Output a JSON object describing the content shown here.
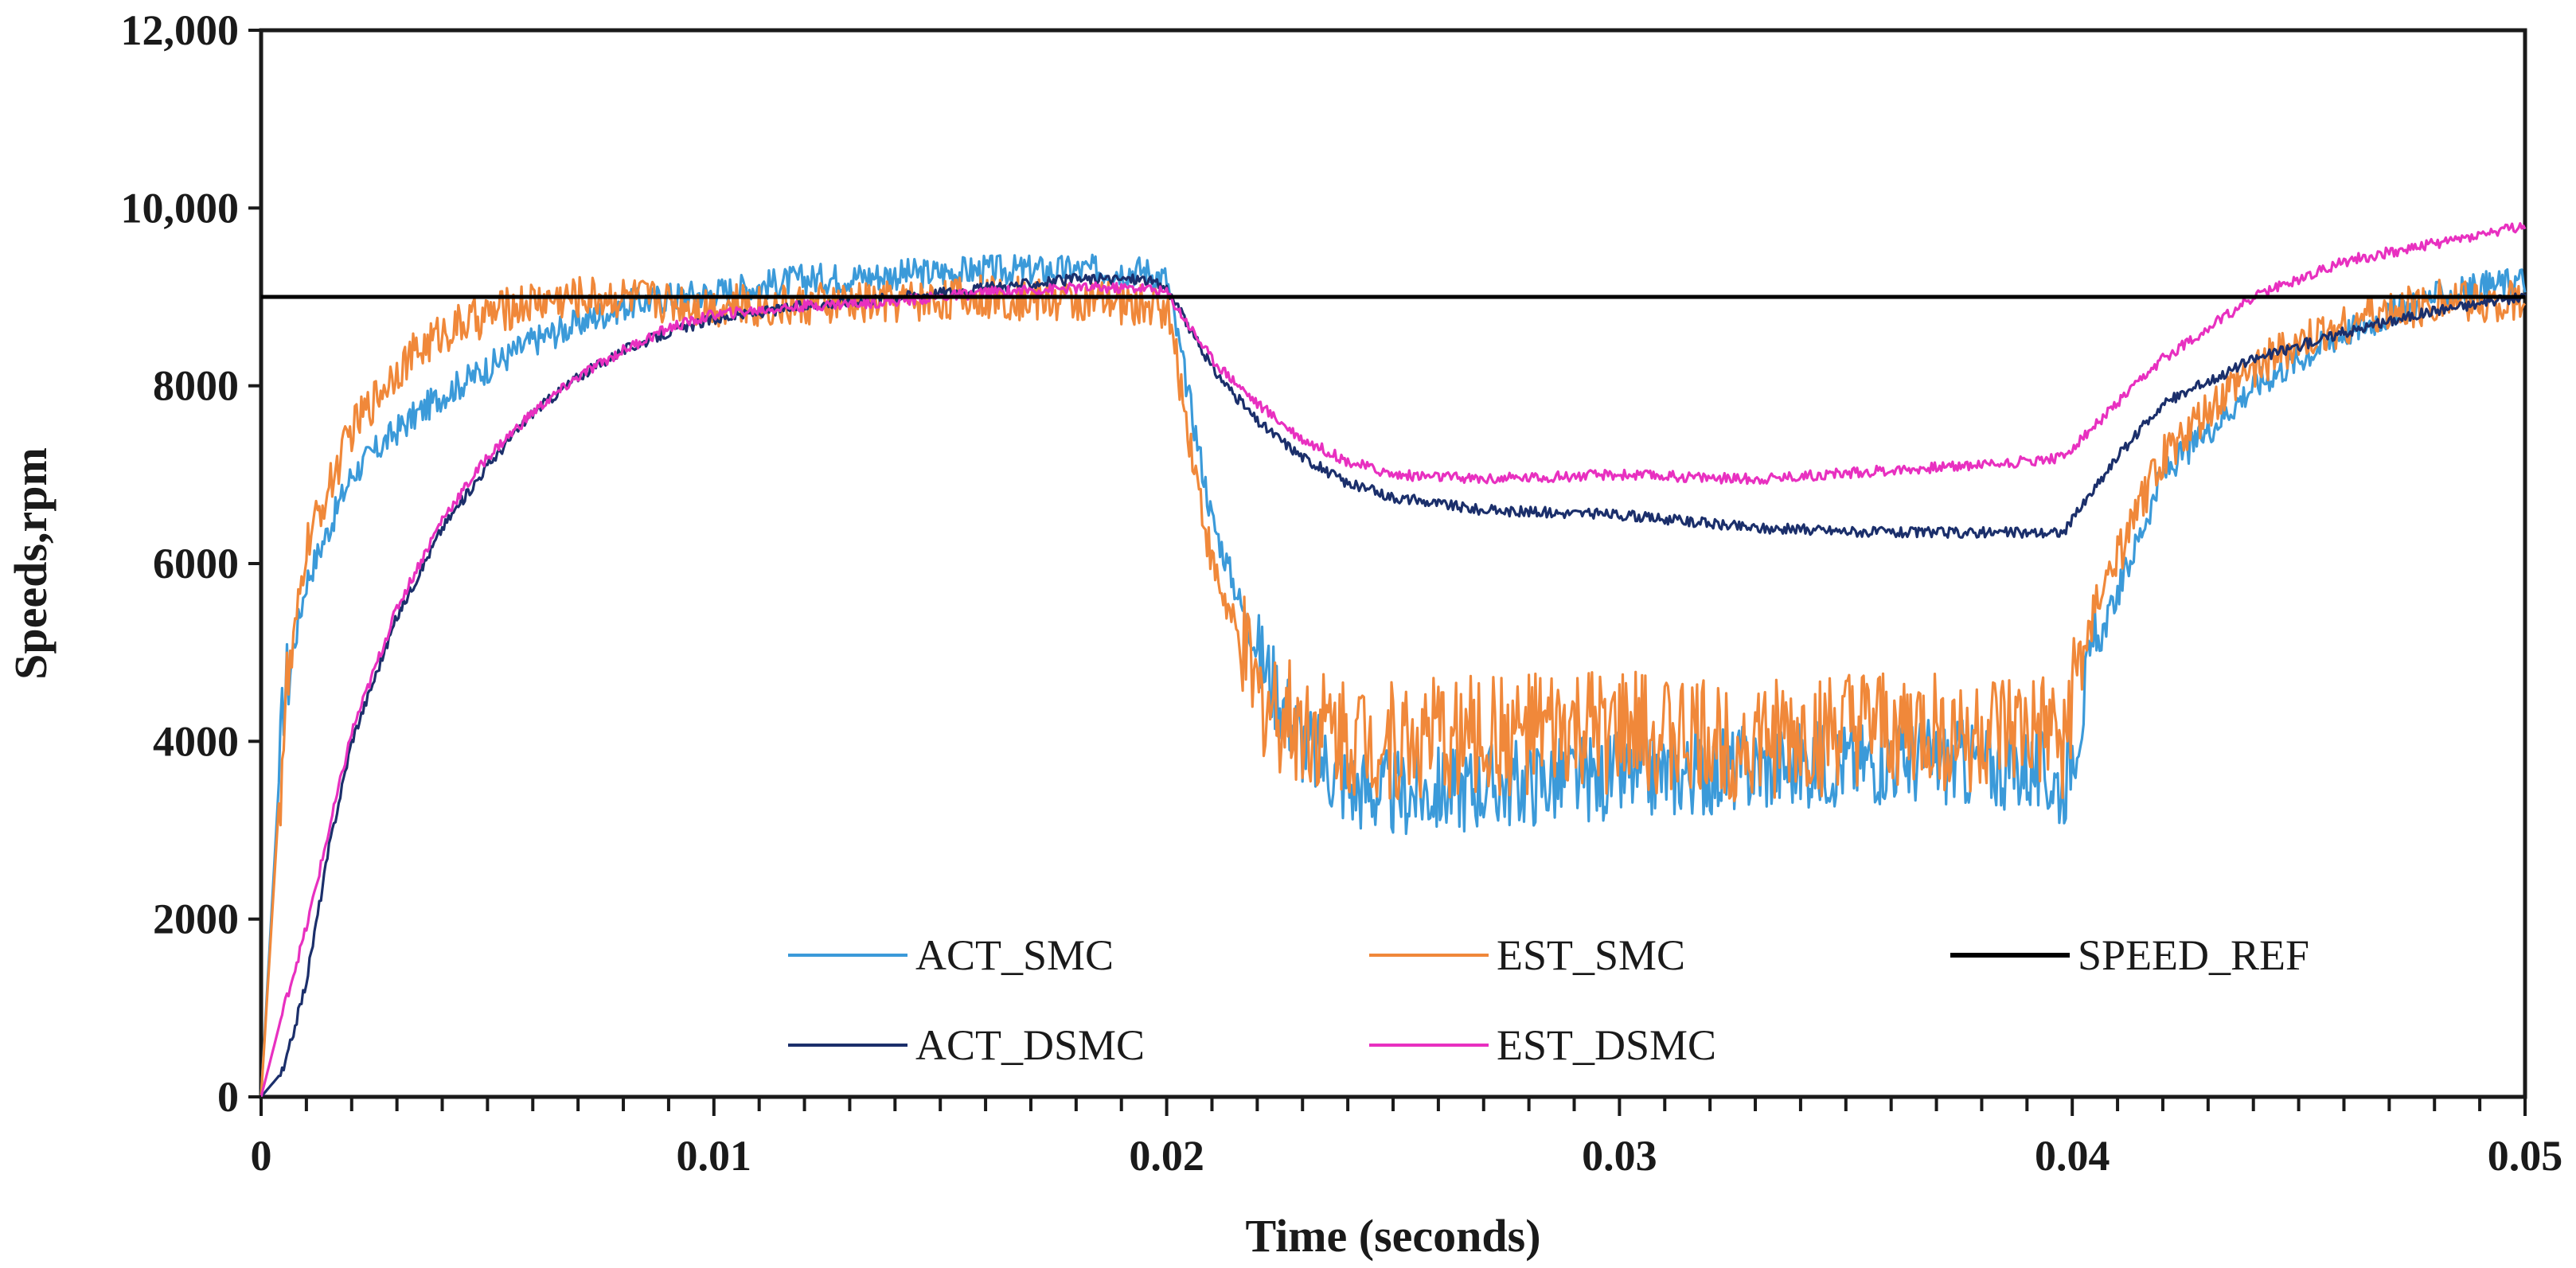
{
  "chart_data": {
    "type": "line",
    "title": "",
    "xlabel": "Time (seconds)",
    "ylabel": "Speeds,rpm",
    "xlim": [
      0,
      0.05
    ],
    "ylim": [
      0,
      12000
    ],
    "x_ticks": [
      "0",
      "0.01",
      "0.02",
      "0.03",
      "0.04",
      "0.05"
    ],
    "x_tick_values": [
      0,
      0.01,
      0.02,
      0.03,
      0.04,
      0.05
    ],
    "y_ticks": [
      "0",
      "2000",
      "4000",
      "6000",
      "8000",
      "10,000",
      "12,000"
    ],
    "y_tick_values": [
      0,
      2000,
      4000,
      6000,
      8000,
      10000,
      12000
    ],
    "grid": false,
    "legend_position": "inside-bottom",
    "series": [
      {
        "name": "ACT_SMC",
        "color": "#3b9ad9",
        "noise": 500,
        "x": [
          0,
          0.0005,
          0.001,
          0.002,
          0.003,
          0.004,
          0.005,
          0.006,
          0.007,
          0.008,
          0.009,
          0.01,
          0.012,
          0.014,
          0.016,
          0.018,
          0.0195,
          0.02,
          0.021,
          0.022,
          0.023,
          0.024,
          0.025,
          0.027,
          0.03,
          0.033,
          0.036,
          0.039,
          0.0398,
          0.0405,
          0.042,
          0.044,
          0.046,
          0.048,
          0.05
        ],
        "y": [
          0,
          4500,
          5800,
          7000,
          7500,
          7900,
          8200,
          8500,
          8700,
          8900,
          9000,
          9050,
          9200,
          9250,
          9300,
          9300,
          9300,
          9200,
          6500,
          5000,
          4000,
          3500,
          3400,
          3500,
          3600,
          3700,
          3800,
          3700,
          3500,
          5000,
          7000,
          8000,
          8600,
          9000,
          9200
        ]
      },
      {
        "name": "EST_SMC",
        "color": "#f0883a",
        "noise": 700,
        "x": [
          0,
          0.0005,
          0.001,
          0.002,
          0.003,
          0.004,
          0.005,
          0.006,
          0.007,
          0.008,
          0.009,
          0.01,
          0.012,
          0.014,
          0.016,
          0.018,
          0.0195,
          0.02,
          0.021,
          0.022,
          0.023,
          0.025,
          0.027,
          0.03,
          0.033,
          0.036,
          0.039,
          0.0398,
          0.0405,
          0.042,
          0.044,
          0.046,
          0.048,
          0.05
        ],
        "y": [
          0,
          4200,
          6200,
          7500,
          8200,
          8600,
          8800,
          8950,
          9000,
          9000,
          8950,
          8900,
          8900,
          8950,
          9000,
          8950,
          8900,
          8900,
          6000,
          4500,
          4200,
          4000,
          4050,
          4100,
          4000,
          4100,
          4050,
          4000,
          5500,
          7200,
          8200,
          8700,
          8950,
          8950
        ]
      },
      {
        "name": "SPEED_REF",
        "color": "#000000",
        "noise": 0,
        "x": [
          0,
          0.05
        ],
        "y": [
          9000,
          9000
        ]
      },
      {
        "name": "ACT_DSMC",
        "color": "#1b2f6b",
        "noise": 60,
        "x": [
          0,
          0.0005,
          0.001,
          0.0015,
          0.002,
          0.003,
          0.004,
          0.005,
          0.006,
          0.007,
          0.008,
          0.009,
          0.01,
          0.012,
          0.014,
          0.016,
          0.018,
          0.0195,
          0.02,
          0.021,
          0.022,
          0.023,
          0.024,
          0.025,
          0.027,
          0.03,
          0.033,
          0.036,
          0.039,
          0.0398,
          0.041,
          0.042,
          0.044,
          0.046,
          0.048,
          0.05
        ],
        "y": [
          0,
          300,
          1300,
          2800,
          4000,
          5400,
          6400,
          7100,
          7700,
          8100,
          8400,
          8600,
          8750,
          8900,
          9000,
          9100,
          9200,
          9200,
          9100,
          8200,
          7600,
          7200,
          6900,
          6750,
          6600,
          6550,
          6400,
          6350,
          6350,
          6350,
          7200,
          7800,
          8300,
          8600,
          8850,
          9000
        ]
      },
      {
        "name": "EST_DSMC",
        "color": "#e830c0",
        "noise": 60,
        "x": [
          0,
          0.0005,
          0.001,
          0.0015,
          0.002,
          0.003,
          0.004,
          0.005,
          0.006,
          0.007,
          0.008,
          0.009,
          0.01,
          0.012,
          0.014,
          0.016,
          0.018,
          0.0195,
          0.02,
          0.021,
          0.022,
          0.023,
          0.024,
          0.025,
          0.027,
          0.03,
          0.033,
          0.036,
          0.039,
          0.0398,
          0.041,
          0.042,
          0.044,
          0.046,
          0.048,
          0.05
        ],
        "y": [
          0,
          1000,
          1900,
          3000,
          4100,
          5500,
          6500,
          7200,
          7700,
          8100,
          8400,
          8650,
          8800,
          8900,
          8950,
          9050,
          9100,
          9100,
          9050,
          8300,
          7800,
          7400,
          7150,
          7000,
          6950,
          7000,
          6950,
          7050,
          7150,
          7200,
          7800,
          8300,
          9000,
          9400,
          9600,
          9800
        ]
      }
    ],
    "legend": [
      {
        "series": "ACT_SMC",
        "label": "ACT_SMC"
      },
      {
        "series": "EST_SMC",
        "label": "EST_SMC"
      },
      {
        "series": "SPEED_REF",
        "label": "SPEED_REF"
      },
      {
        "series": "ACT_DSMC",
        "label": "ACT_DSMC"
      },
      {
        "series": "EST_DSMC",
        "label": "EST_DSMC"
      }
    ]
  }
}
